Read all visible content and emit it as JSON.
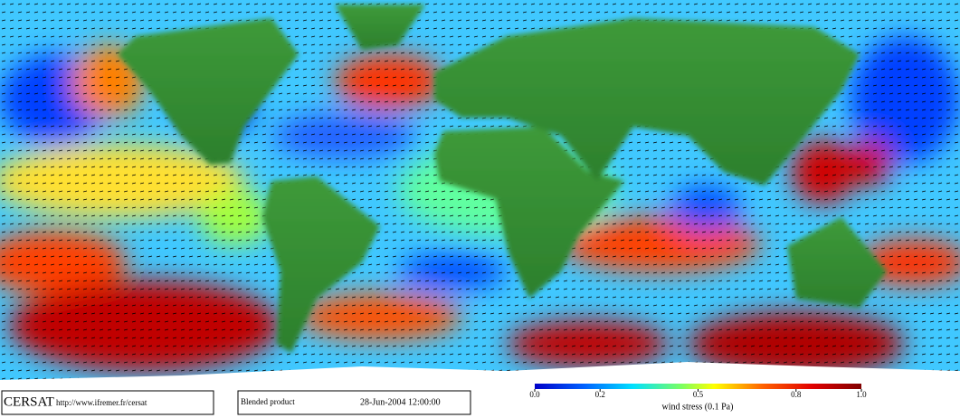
{
  "header": {
    "logo": "CERSAT",
    "url": "http://www.ifremer.fr/cersat",
    "product": "Blended product",
    "date": "28-Jun-2004 12:00:00"
  },
  "colorbar": {
    "label": "wind stress (0.1 Pa)",
    "lim": [
      0,
      1
    ],
    "ticks": [
      {
        "value": 0,
        "label": "0.0"
      },
      0.2,
      0.5,
      0.8,
      {
        "value": 1,
        "label": "1.0"
      }
    ]
  }
}
